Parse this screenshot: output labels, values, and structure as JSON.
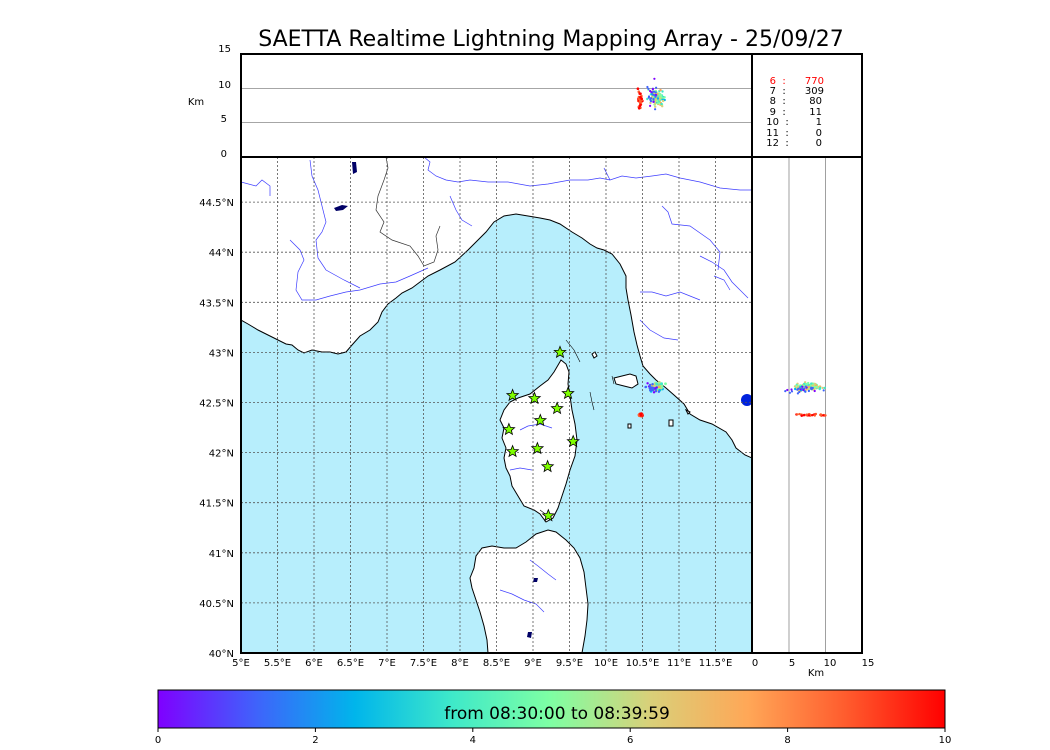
{
  "title": "SAETTA Realtime Lightning Mapping Array - 25/09/27",
  "altitude_panel": {
    "unit_label": "Km",
    "y_ticks": [
      "15",
      "10",
      "5",
      "0"
    ]
  },
  "map": {
    "lon_ticks": [
      "5°E",
      "5.5°E",
      "6°E",
      "6.5°E",
      "7°E",
      "7.5°E",
      "8°E",
      "8.5°E",
      "9°E",
      "9.5°E",
      "10°E",
      "10.5°E",
      "11°E",
      "11.5°E"
    ],
    "lat_ticks": [
      "44.5°N",
      "44°N",
      "43.5°N",
      "43°N",
      "42.5°N",
      "42°N",
      "41.5°N",
      "41°N",
      "40.5°N",
      "40°N"
    ],
    "lon_range": [
      5,
      12
    ],
    "lat_range": [
      40,
      44.95
    ],
    "sea_color": "#b7eefc",
    "land_color": "#ffffff",
    "river_color": "#3d3dff",
    "stations": [
      {
        "lon": 9.37,
        "lat": 43.0
      },
      {
        "lon": 8.72,
        "lat": 42.57
      },
      {
        "lon": 9.02,
        "lat": 42.54
      },
      {
        "lon": 9.48,
        "lat": 42.59
      },
      {
        "lon": 9.33,
        "lat": 42.44
      },
      {
        "lon": 9.1,
        "lat": 42.32
      },
      {
        "lon": 8.67,
        "lat": 42.23
      },
      {
        "lon": 9.55,
        "lat": 42.11
      },
      {
        "lon": 8.72,
        "lat": 42.01
      },
      {
        "lon": 9.06,
        "lat": 42.04
      },
      {
        "lon": 9.2,
        "lat": 41.86
      },
      {
        "lon": 9.21,
        "lat": 41.37
      }
    ],
    "station_color": "#7fff00"
  },
  "side_panel": {
    "x_ticks": [
      "0",
      "5",
      "10",
      "15"
    ],
    "unit_label": "Km"
  },
  "counts_table": [
    {
      "alt": "6",
      "sep": ":",
      "count": "770",
      "highlight": true
    },
    {
      "alt": "7",
      "sep": ":",
      "count": "309",
      "highlight": false
    },
    {
      "alt": "8",
      "sep": ":",
      "count": "80",
      "highlight": false
    },
    {
      "alt": "9",
      "sep": ":",
      "count": "11",
      "highlight": false
    },
    {
      "alt": "10",
      "sep": ":",
      "count": "1",
      "highlight": false
    },
    {
      "alt": "11",
      "sep": ":",
      "count": "0",
      "highlight": false
    },
    {
      "alt": "12",
      "sep": ":",
      "count": "0",
      "highlight": false
    }
  ],
  "colorbar": {
    "label": "from 08:30:00 to 08:39:59",
    "ticks": [
      "0",
      "2",
      "4",
      "6",
      "8",
      "10"
    ],
    "stops": [
      "#7f00ff",
      "#3f63fb",
      "#00b5eb",
      "#3fe9c9",
      "#7fffa3",
      "#d9d079",
      "#ffa757",
      "#ff5b2d",
      "#ff0000"
    ]
  },
  "highlight_color": "#ff0000"
}
